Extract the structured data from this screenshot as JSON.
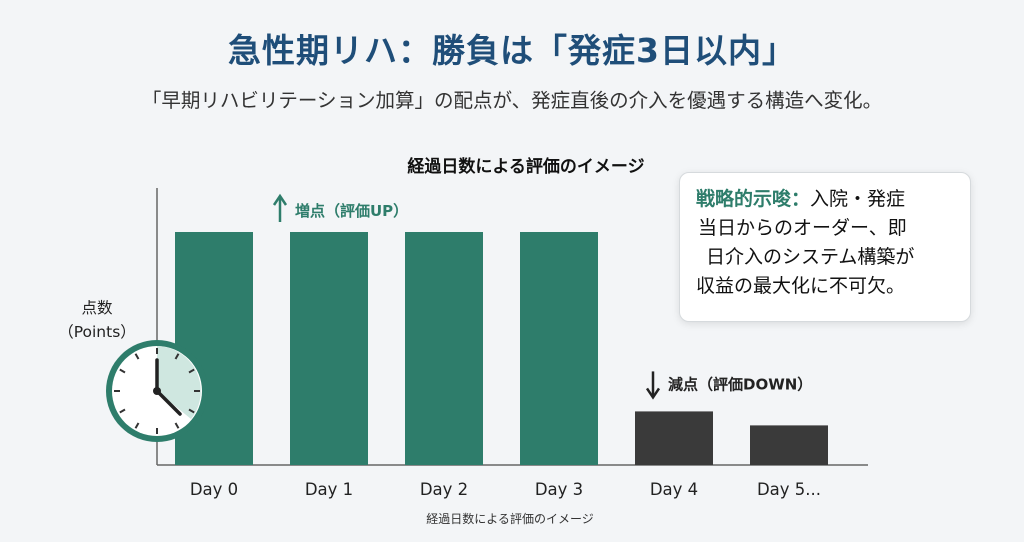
{
  "header": {
    "title": "急性期リハ：勝負は「発症3日以内」",
    "subtitle": "「早期リハビリテーション加算」の配点が、発症直後の介入を優遇する構造へ変化。"
  },
  "chart_data": {
    "type": "bar",
    "title": "経過日数による評価のイメージ",
    "xlabel": "経過日数による評価のイメージ",
    "ylabel": "点数\n（Points）",
    "categories": [
      "Day 0",
      "Day 1",
      "Day 2",
      "Day 3",
      "Day 4",
      "Day 5..."
    ],
    "values": [
      100,
      100,
      100,
      100,
      23,
      17
    ],
    "ylim": [
      0,
      100
    ],
    "bar_colors": [
      "#2e7d6b",
      "#2e7d6b",
      "#2e7d6b",
      "#2e7d6b",
      "#3a3a3a",
      "#3a3a3a"
    ],
    "grid": false,
    "annotations": [
      {
        "text": "増点（評価UP）",
        "arrow": "up",
        "color": "#2e7d6b",
        "category": "Day 1"
      },
      {
        "text": "減点（評価DOWN）",
        "arrow": "down",
        "color": "#222222",
        "category": "Day 4"
      }
    ]
  },
  "note": {
    "label": "戦略的示唆：",
    "lines": [
      "入院・発症",
      "当日からのオーダー、即",
      "日介入のシステム構築が",
      "収益の最大化に不可欠。"
    ]
  },
  "icons": {
    "clock": "clock-icon"
  },
  "colors": {
    "accent": "#2e7d6b",
    "title": "#1f4e79",
    "decline": "#3a3a3a"
  }
}
